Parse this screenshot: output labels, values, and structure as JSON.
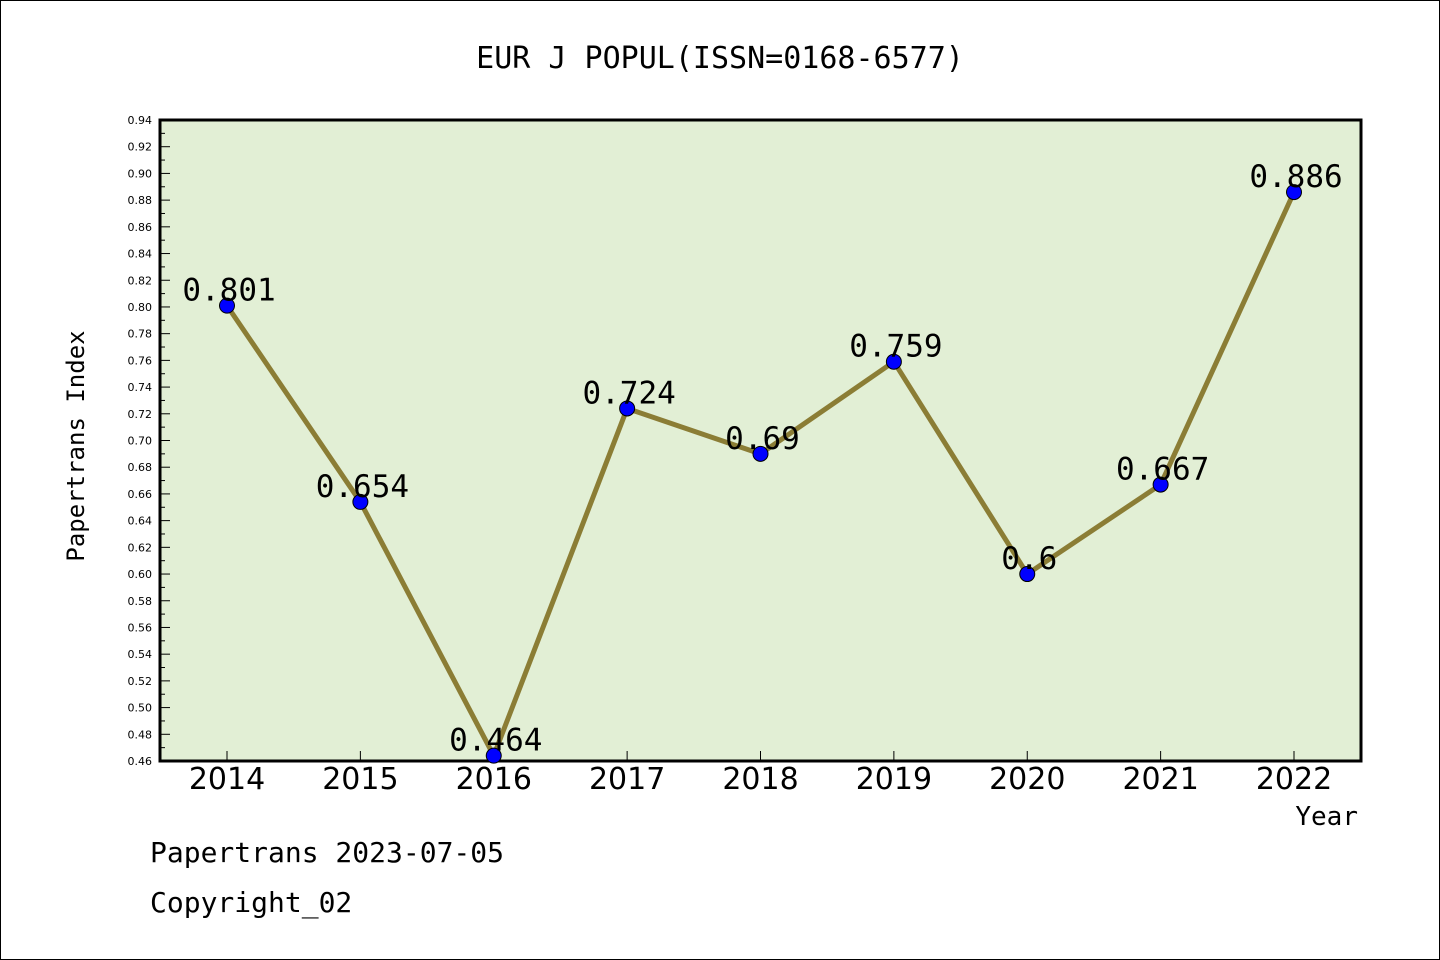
{
  "chart_data": {
    "type": "line",
    "title": "EUR J POPUL(ISSN=0168-6577)",
    "xlabel": "Year",
    "ylabel": "Papertrans Index",
    "categories": [
      "2014",
      "2015",
      "2016",
      "2017",
      "2018",
      "2019",
      "2020",
      "2021",
      "2022"
    ],
    "series": [
      {
        "values": [
          0.801,
          0.654,
          0.464,
          0.724,
          0.69,
          0.759,
          0.6,
          0.667,
          0.886
        ],
        "labels": [
          "0.801",
          "0.654",
          "0.464",
          "0.724",
          "0.69",
          "0.759",
          "0.6",
          "0.667",
          "0.886"
        ]
      }
    ],
    "ylim": [
      0.46,
      0.94
    ],
    "yticks": [
      "0.46",
      "0.48",
      "0.50",
      "0.52",
      "0.54",
      "0.56",
      "0.58",
      "0.60",
      "0.62",
      "0.64",
      "0.66",
      "0.68",
      "0.70",
      "0.72",
      "0.74",
      "0.76",
      "0.78",
      "0.80",
      "0.82",
      "0.84",
      "0.86",
      "0.88",
      "0.90",
      "0.92",
      "0.94"
    ],
    "grid": false,
    "colors": {
      "plot_background": "#e2efd5",
      "line": "#8b7d35",
      "marker": "#0000ff"
    }
  },
  "footer": {
    "line1": "Papertrans 2023-07-05",
    "line2": "Copyright_02"
  }
}
